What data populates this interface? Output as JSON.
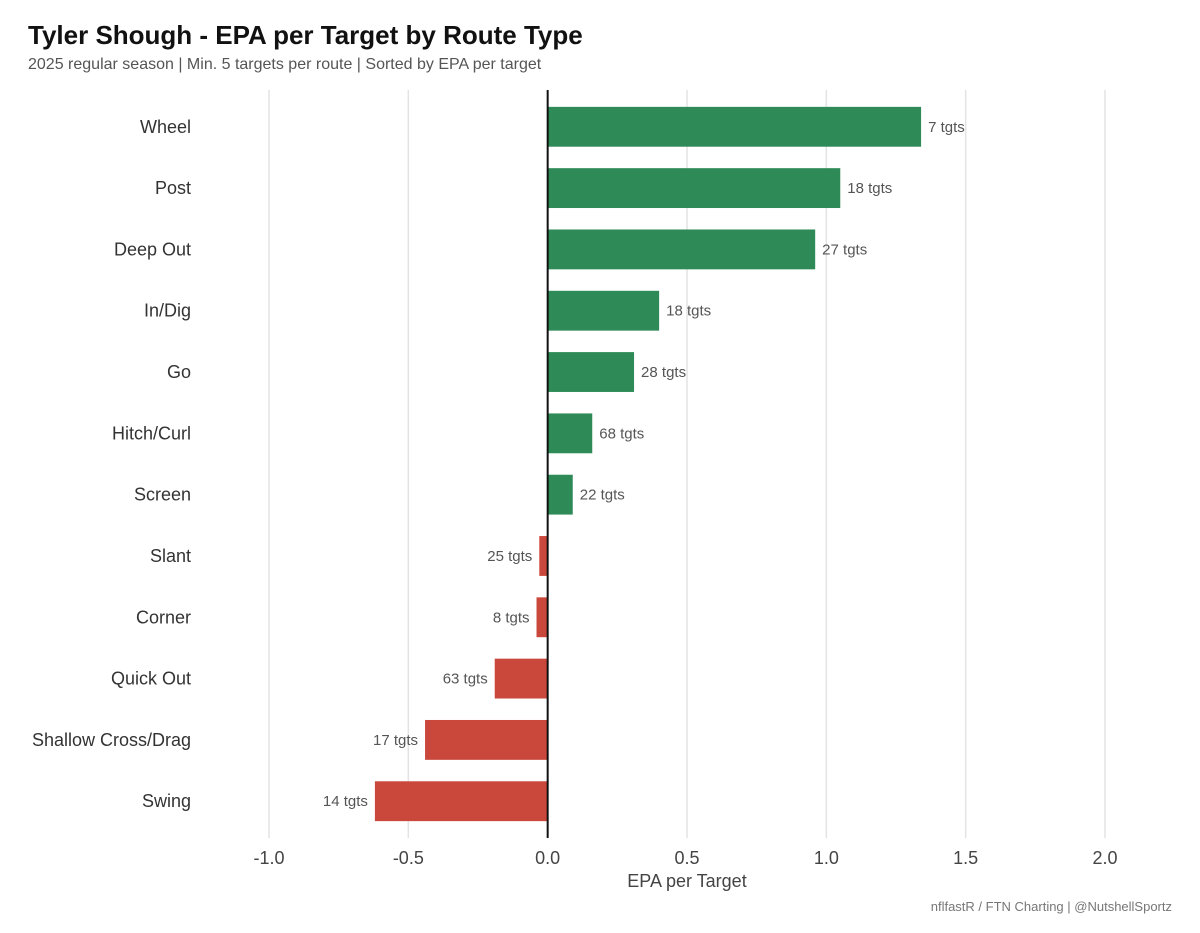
{
  "title": "Tyler Shough - EPA per Target by Route Type",
  "subtitle": "2025 regular season | Min. 5 targets per route | Sorted by EPA per target",
  "caption": "nflfastR / FTN Charting | @NutshellSportz",
  "colors": {
    "positive": "#2e8b57",
    "negative": "#c9473b",
    "grid": "#e3e3e3",
    "zero_line": "#111111"
  },
  "chart_data": {
    "type": "bar",
    "orientation": "horizontal",
    "categories": [
      "Wheel",
      "Post",
      "Deep Out",
      "In/Dig",
      "Go",
      "Hitch/Curl",
      "Screen",
      "Slant",
      "Corner",
      "Quick Out",
      "Shallow Cross/Drag",
      "Swing"
    ],
    "values": [
      1.34,
      1.05,
      0.96,
      0.4,
      0.31,
      0.16,
      0.09,
      -0.03,
      -0.04,
      -0.19,
      -0.44,
      -0.62
    ],
    "data_labels": [
      "7 tgts",
      "18 tgts",
      "27 tgts",
      "18 tgts",
      "28 tgts",
      "68 tgts",
      "22 tgts",
      "25 tgts",
      "8 tgts",
      "63 tgts",
      "17 tgts",
      "14 tgts"
    ],
    "xlabel": "EPA per Target",
    "ylabel": "",
    "xlim": [
      -1.0,
      2.0
    ],
    "xticks": [
      -1.0,
      -0.5,
      0.0,
      0.5,
      1.0,
      1.5,
      2.0
    ],
    "xtick_labels": [
      "-1.0",
      "-0.5",
      "0.0",
      "0.5",
      "1.0",
      "1.5",
      "2.0"
    ],
    "grid": "vertical major"
  }
}
